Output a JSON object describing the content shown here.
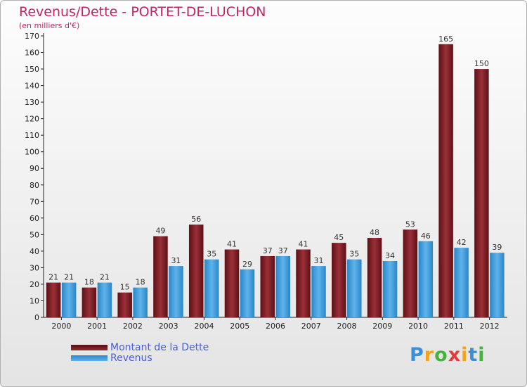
{
  "chart_data": {
    "type": "bar",
    "title": "Revenus/Dette - PORTET-DE-LUCHON",
    "subtitle": "(en milliers d'€)",
    "categories": [
      "2000",
      "2001",
      "2002",
      "2003",
      "2004",
      "2005",
      "2006",
      "2007",
      "2008",
      "2009",
      "2010",
      "2011",
      "2012"
    ],
    "series": [
      {
        "name": "Montant de la Dette",
        "color": "#7a1c22",
        "values": [
          21,
          18,
          15,
          49,
          56,
          41,
          37,
          41,
          45,
          48,
          53,
          165,
          150
        ]
      },
      {
        "name": "Revenus",
        "color": "#3a9ad9",
        "values": [
          21,
          21,
          18,
          31,
          35,
          29,
          37,
          31,
          35,
          34,
          46,
          42,
          39
        ]
      }
    ],
    "ylim": [
      0,
      170
    ],
    "yticks": [
      0,
      10,
      20,
      30,
      40,
      50,
      60,
      70,
      80,
      90,
      100,
      110,
      120,
      130,
      140,
      150,
      160,
      170
    ],
    "grid": false,
    "legend_position": "bottom-left",
    "data_labels": true
  },
  "logo": {
    "letters": [
      "P",
      "r",
      "o",
      "x",
      "i",
      "t",
      "i"
    ],
    "colors": [
      "#3a8fd6",
      "#f2a31b",
      "#46b33f",
      "#e23b3b",
      "#f2a31b",
      "#3a8fd6",
      "#46b33f"
    ]
  }
}
